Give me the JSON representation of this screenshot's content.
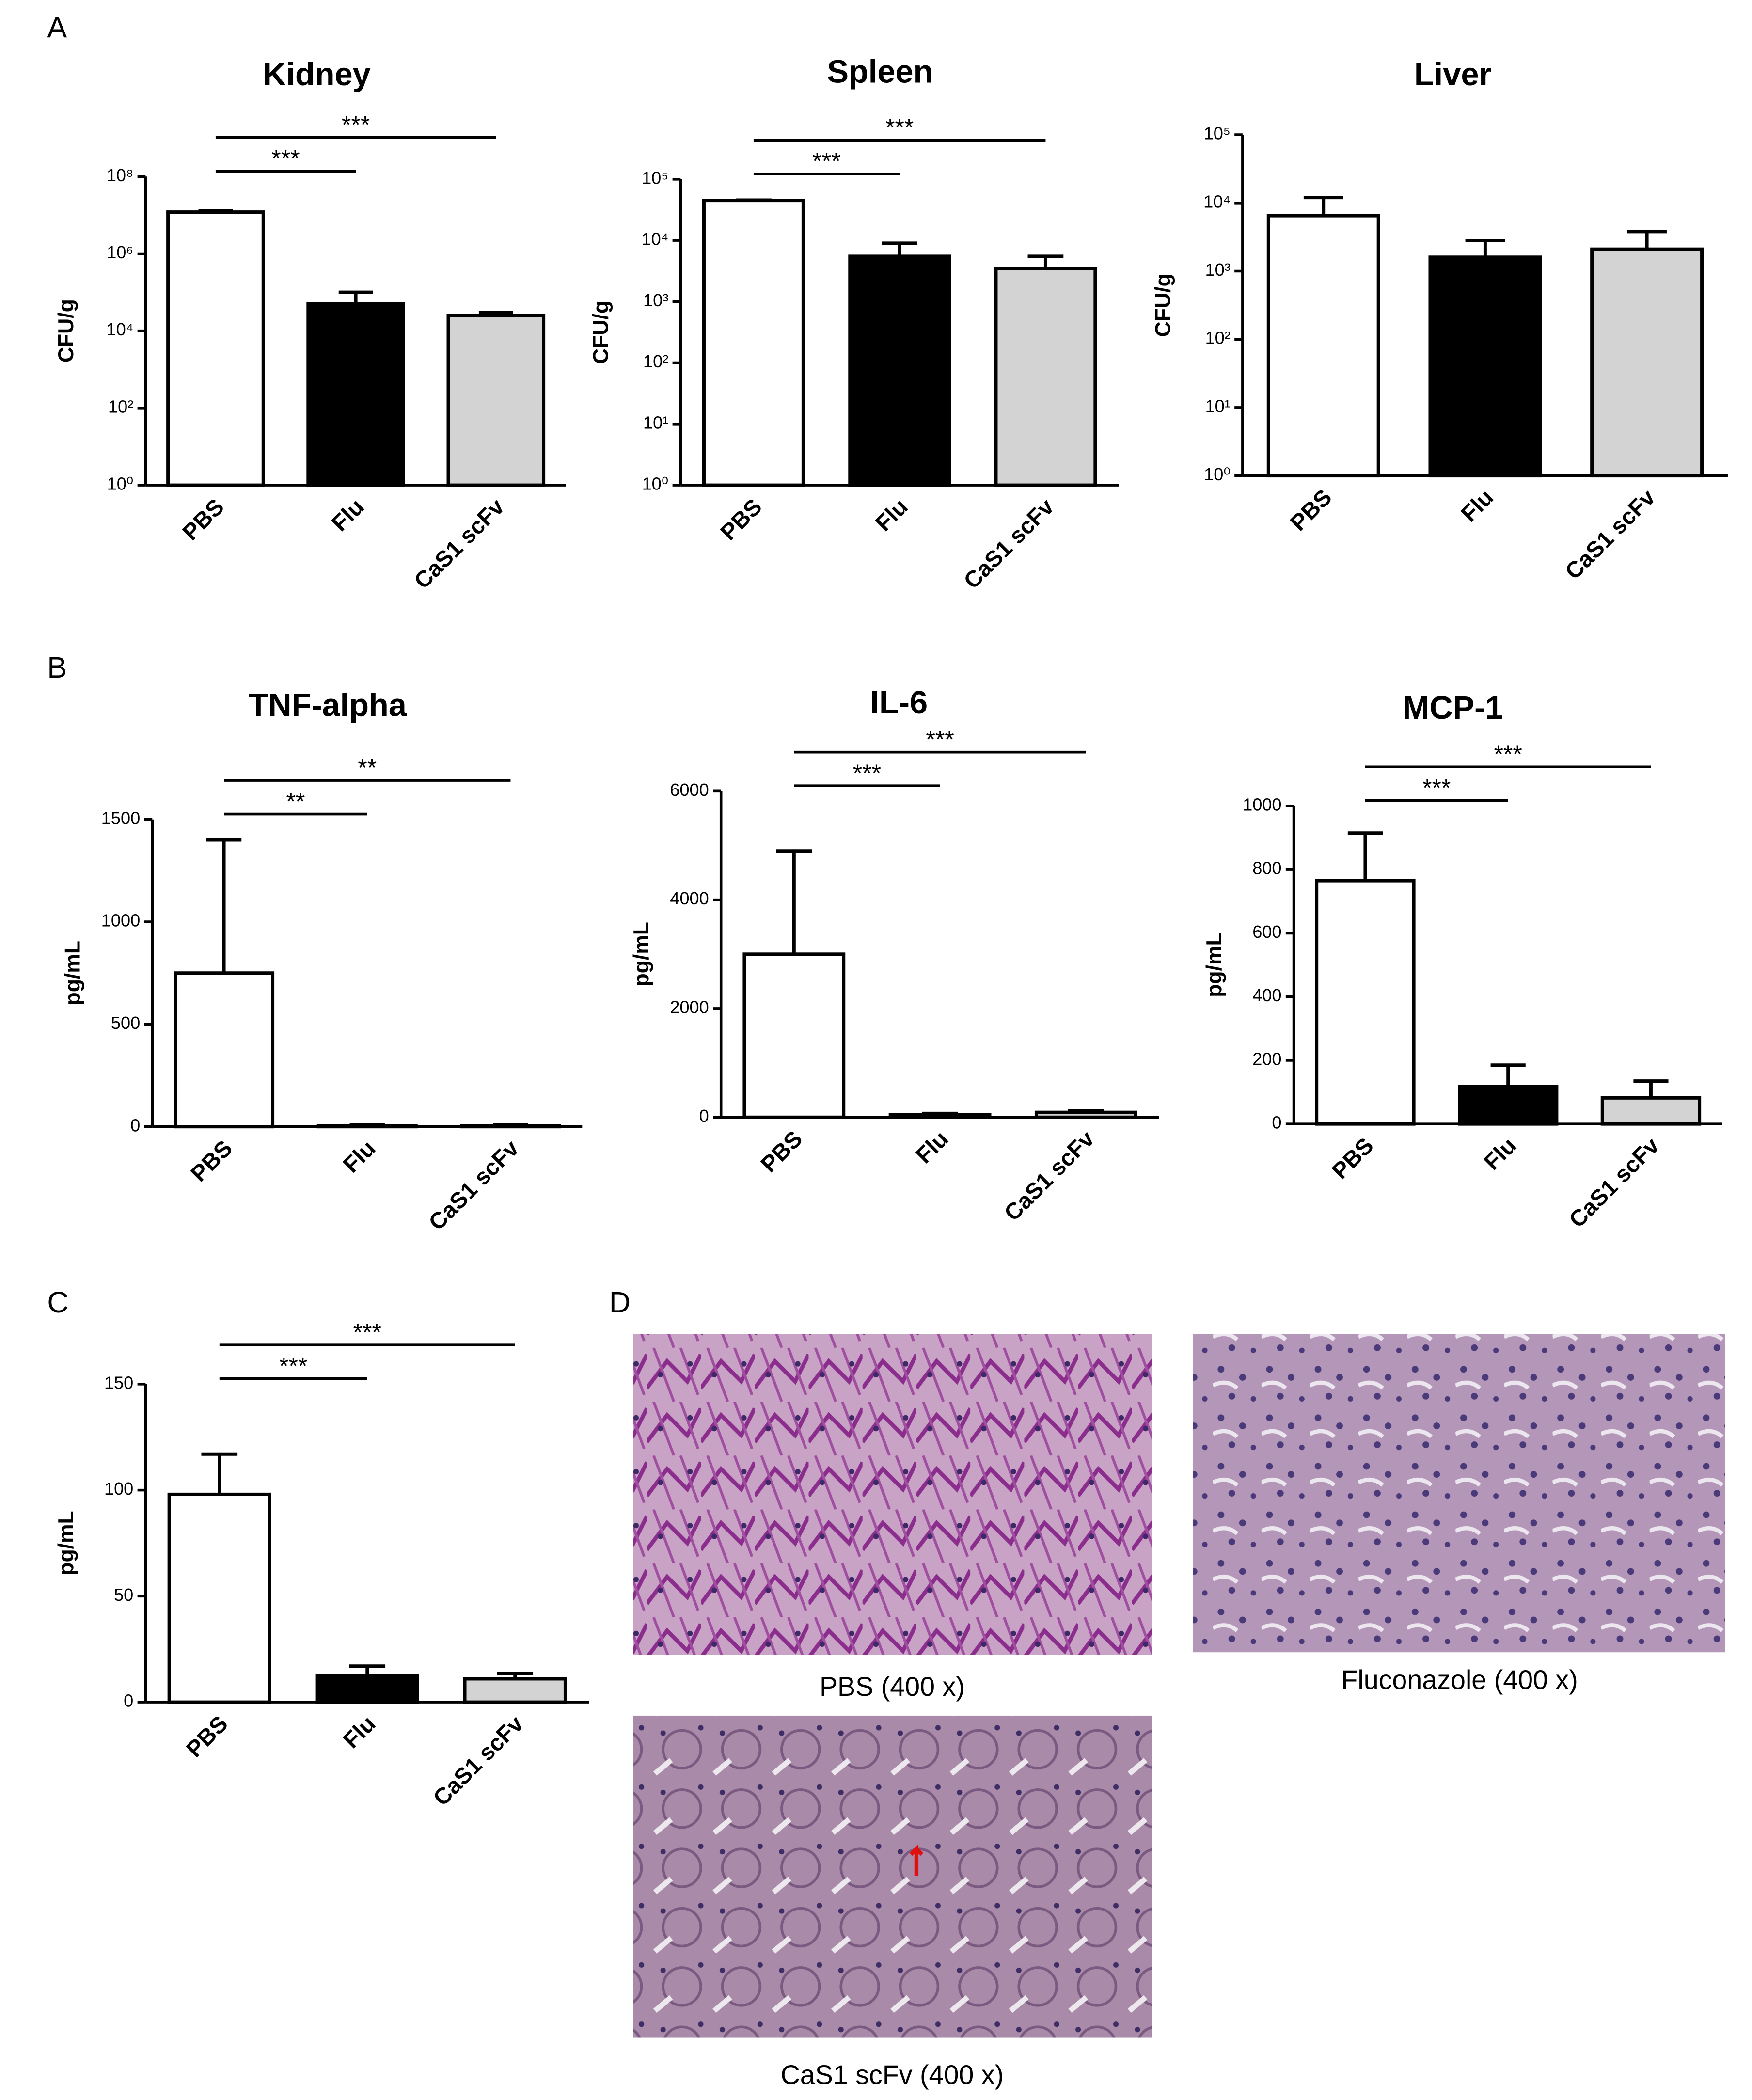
{
  "panels": [
    "A",
    "B",
    "C",
    "D"
  ],
  "chart_data": [
    {
      "type": "bar",
      "title": "Kidney",
      "ylabel": "CFU/g",
      "categories": [
        "PBS",
        "Flu",
        "CaS1 scFv"
      ],
      "values": [
        12000000,
        50000,
        25000
      ],
      "errors": [
        1000000,
        50000,
        5000
      ],
      "colors": [
        "#ffffff",
        "#000000",
        "#d3d3d3"
      ],
      "log_scale": true,
      "ylim": [
        1,
        100000000
      ],
      "yticks": [
        {
          "value": 1,
          "label": "10⁰"
        },
        {
          "value": 100,
          "label": "10²"
        },
        {
          "value": 10000,
          "label": "10⁴"
        },
        {
          "value": 1000000,
          "label": "10⁶"
        },
        {
          "value": 100000000,
          "label": "10⁸"
        }
      ],
      "annotations": [
        {
          "text": "***",
          "from": 0,
          "to": 1
        },
        {
          "text": "***",
          "from": 0,
          "to": 2
        }
      ]
    },
    {
      "type": "bar",
      "title": "Spleen",
      "ylabel": "CFU/g",
      "categories": [
        "PBS",
        "Flu",
        "CaS1 scFv"
      ],
      "values": [
        45000,
        5500,
        3500
      ],
      "errors": [
        500,
        3500,
        2000
      ],
      "colors": [
        "#ffffff",
        "#000000",
        "#d3d3d3"
      ],
      "log_scale": true,
      "ylim": [
        1,
        100000
      ],
      "yticks": [
        {
          "value": 1,
          "label": "10⁰"
        },
        {
          "value": 10,
          "label": "10¹"
        },
        {
          "value": 100,
          "label": "10²"
        },
        {
          "value": 1000,
          "label": "10³"
        },
        {
          "value": 10000,
          "label": "10⁴"
        },
        {
          "value": 100000,
          "label": "10⁵"
        }
      ],
      "annotations": [
        {
          "text": "***",
          "from": 0,
          "to": 1
        },
        {
          "text": "***",
          "from": 0,
          "to": 2
        }
      ]
    },
    {
      "type": "bar",
      "title": "Liver",
      "ylabel": "CFU/g",
      "categories": [
        "PBS",
        "Flu",
        "CaS1 scFv"
      ],
      "values": [
        6500,
        1600,
        2100
      ],
      "errors": [
        5500,
        1200,
        1700
      ],
      "colors": [
        "#ffffff",
        "#000000",
        "#d3d3d3"
      ],
      "log_scale": true,
      "ylim": [
        1,
        100000
      ],
      "yticks": [
        {
          "value": 1,
          "label": "10⁰"
        },
        {
          "value": 10,
          "label": "10¹"
        },
        {
          "value": 100,
          "label": "10²"
        },
        {
          "value": 1000,
          "label": "10³"
        },
        {
          "value": 10000,
          "label": "10⁴"
        },
        {
          "value": 100000,
          "label": "10⁵"
        }
      ],
      "annotations": []
    },
    {
      "type": "bar",
      "title": "TNF-alpha",
      "ylabel": "pg/mL",
      "categories": [
        "PBS",
        "Flu",
        "CaS1 scFv"
      ],
      "values": [
        750,
        5,
        5
      ],
      "errors": [
        650,
        3,
        3
      ],
      "colors": [
        "#ffffff",
        "#000000",
        "#d3d3d3"
      ],
      "ylim": [
        0,
        1500
      ],
      "yticks": [
        0,
        500,
        1000,
        1500
      ],
      "annotations": [
        {
          "text": "**",
          "from": 0,
          "to": 1
        },
        {
          "text": "**",
          "from": 0,
          "to": 2
        }
      ]
    },
    {
      "type": "bar",
      "title": "IL-6",
      "ylabel": "pg/mL",
      "categories": [
        "PBS",
        "Flu",
        "CaS1 scFv"
      ],
      "values": [
        3000,
        50,
        90
      ],
      "errors": [
        1900,
        20,
        30
      ],
      "colors": [
        "#ffffff",
        "#000000",
        "#d3d3d3"
      ],
      "ylim": [
        0,
        6000
      ],
      "yticks": [
        0,
        2000,
        4000,
        6000
      ],
      "annotations": [
        {
          "text": "***",
          "from": 0,
          "to": 1
        },
        {
          "text": "***",
          "from": 0,
          "to": 2
        }
      ]
    },
    {
      "type": "bar",
      "title": "MCP-1",
      "ylabel": "pg/mL",
      "categories": [
        "PBS",
        "Flu",
        "CaS1 scFv"
      ],
      "values": [
        765,
        118,
        82
      ],
      "errors": [
        150,
        67,
        53
      ],
      "colors": [
        "#ffffff",
        "#000000",
        "#d3d3d3"
      ],
      "ylim": [
        0,
        1000
      ],
      "yticks": [
        0,
        200,
        400,
        600,
        800,
        1000
      ],
      "annotations": [
        {
          "text": "***",
          "from": 0,
          "to": 1
        },
        {
          "text": "***",
          "from": 0,
          "to": 2
        }
      ]
    },
    {
      "type": "bar",
      "ylabel": "pg/mL",
      "categories": [
        "PBS",
        "Flu",
        "CaS1 scFv"
      ],
      "values": [
        98,
        12.5,
        11
      ],
      "errors": [
        19,
        4.5,
        2.5
      ],
      "colors": [
        "#ffffff",
        "#000000",
        "#d3d3d3"
      ],
      "ylim": [
        0,
        150
      ],
      "yticks": [
        0,
        50,
        100,
        150
      ],
      "annotations": [
        {
          "text": "***",
          "from": 0,
          "to": 1
        },
        {
          "text": "***",
          "from": 0,
          "to": 2
        }
      ]
    }
  ],
  "images": [
    {
      "caption": "PBS (400 x)"
    },
    {
      "caption": "Fluconazole (400 x)"
    },
    {
      "caption": "CaS1 scFv (400 x)"
    }
  ]
}
